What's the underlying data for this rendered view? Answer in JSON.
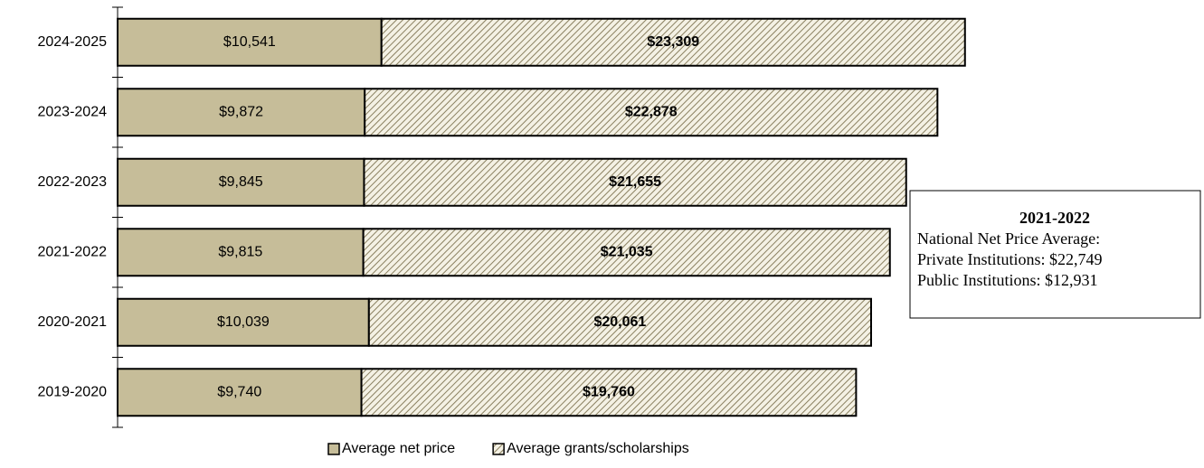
{
  "chart_data": {
    "type": "stacked-barh",
    "categories": [
      "2024-2025",
      "2023-2024",
      "2022-2023",
      "2021-2022",
      "2020-2021",
      "2019-2020"
    ],
    "series": [
      {
        "name": "Average net price",
        "color": "#c6bd99",
        "values": [
          10541,
          9872,
          9845,
          9815,
          10039,
          9740
        ],
        "value_labels": [
          "$10,541",
          "$9,872",
          "$9,845",
          "$9,815",
          "$10,039",
          "$9,740"
        ]
      },
      {
        "name": "Average grants/scholarships",
        "color": "#8a8060",
        "pattern": "hatch",
        "values": [
          23309,
          22878,
          21655,
          21035,
          20061,
          19760
        ],
        "value_labels": [
          "$23,309",
          "$22,878",
          "$21,655",
          "$21,035",
          "$20,061",
          "$19,760"
        ]
      }
    ],
    "xlim": [
      0,
      43000
    ],
    "annotation": {
      "title": "2021-2022",
      "lines": [
        "National Net Price Average:",
        "Private Institutions: $22,749",
        "Public Institutions: $12,931"
      ]
    },
    "legend": "bottom"
  }
}
